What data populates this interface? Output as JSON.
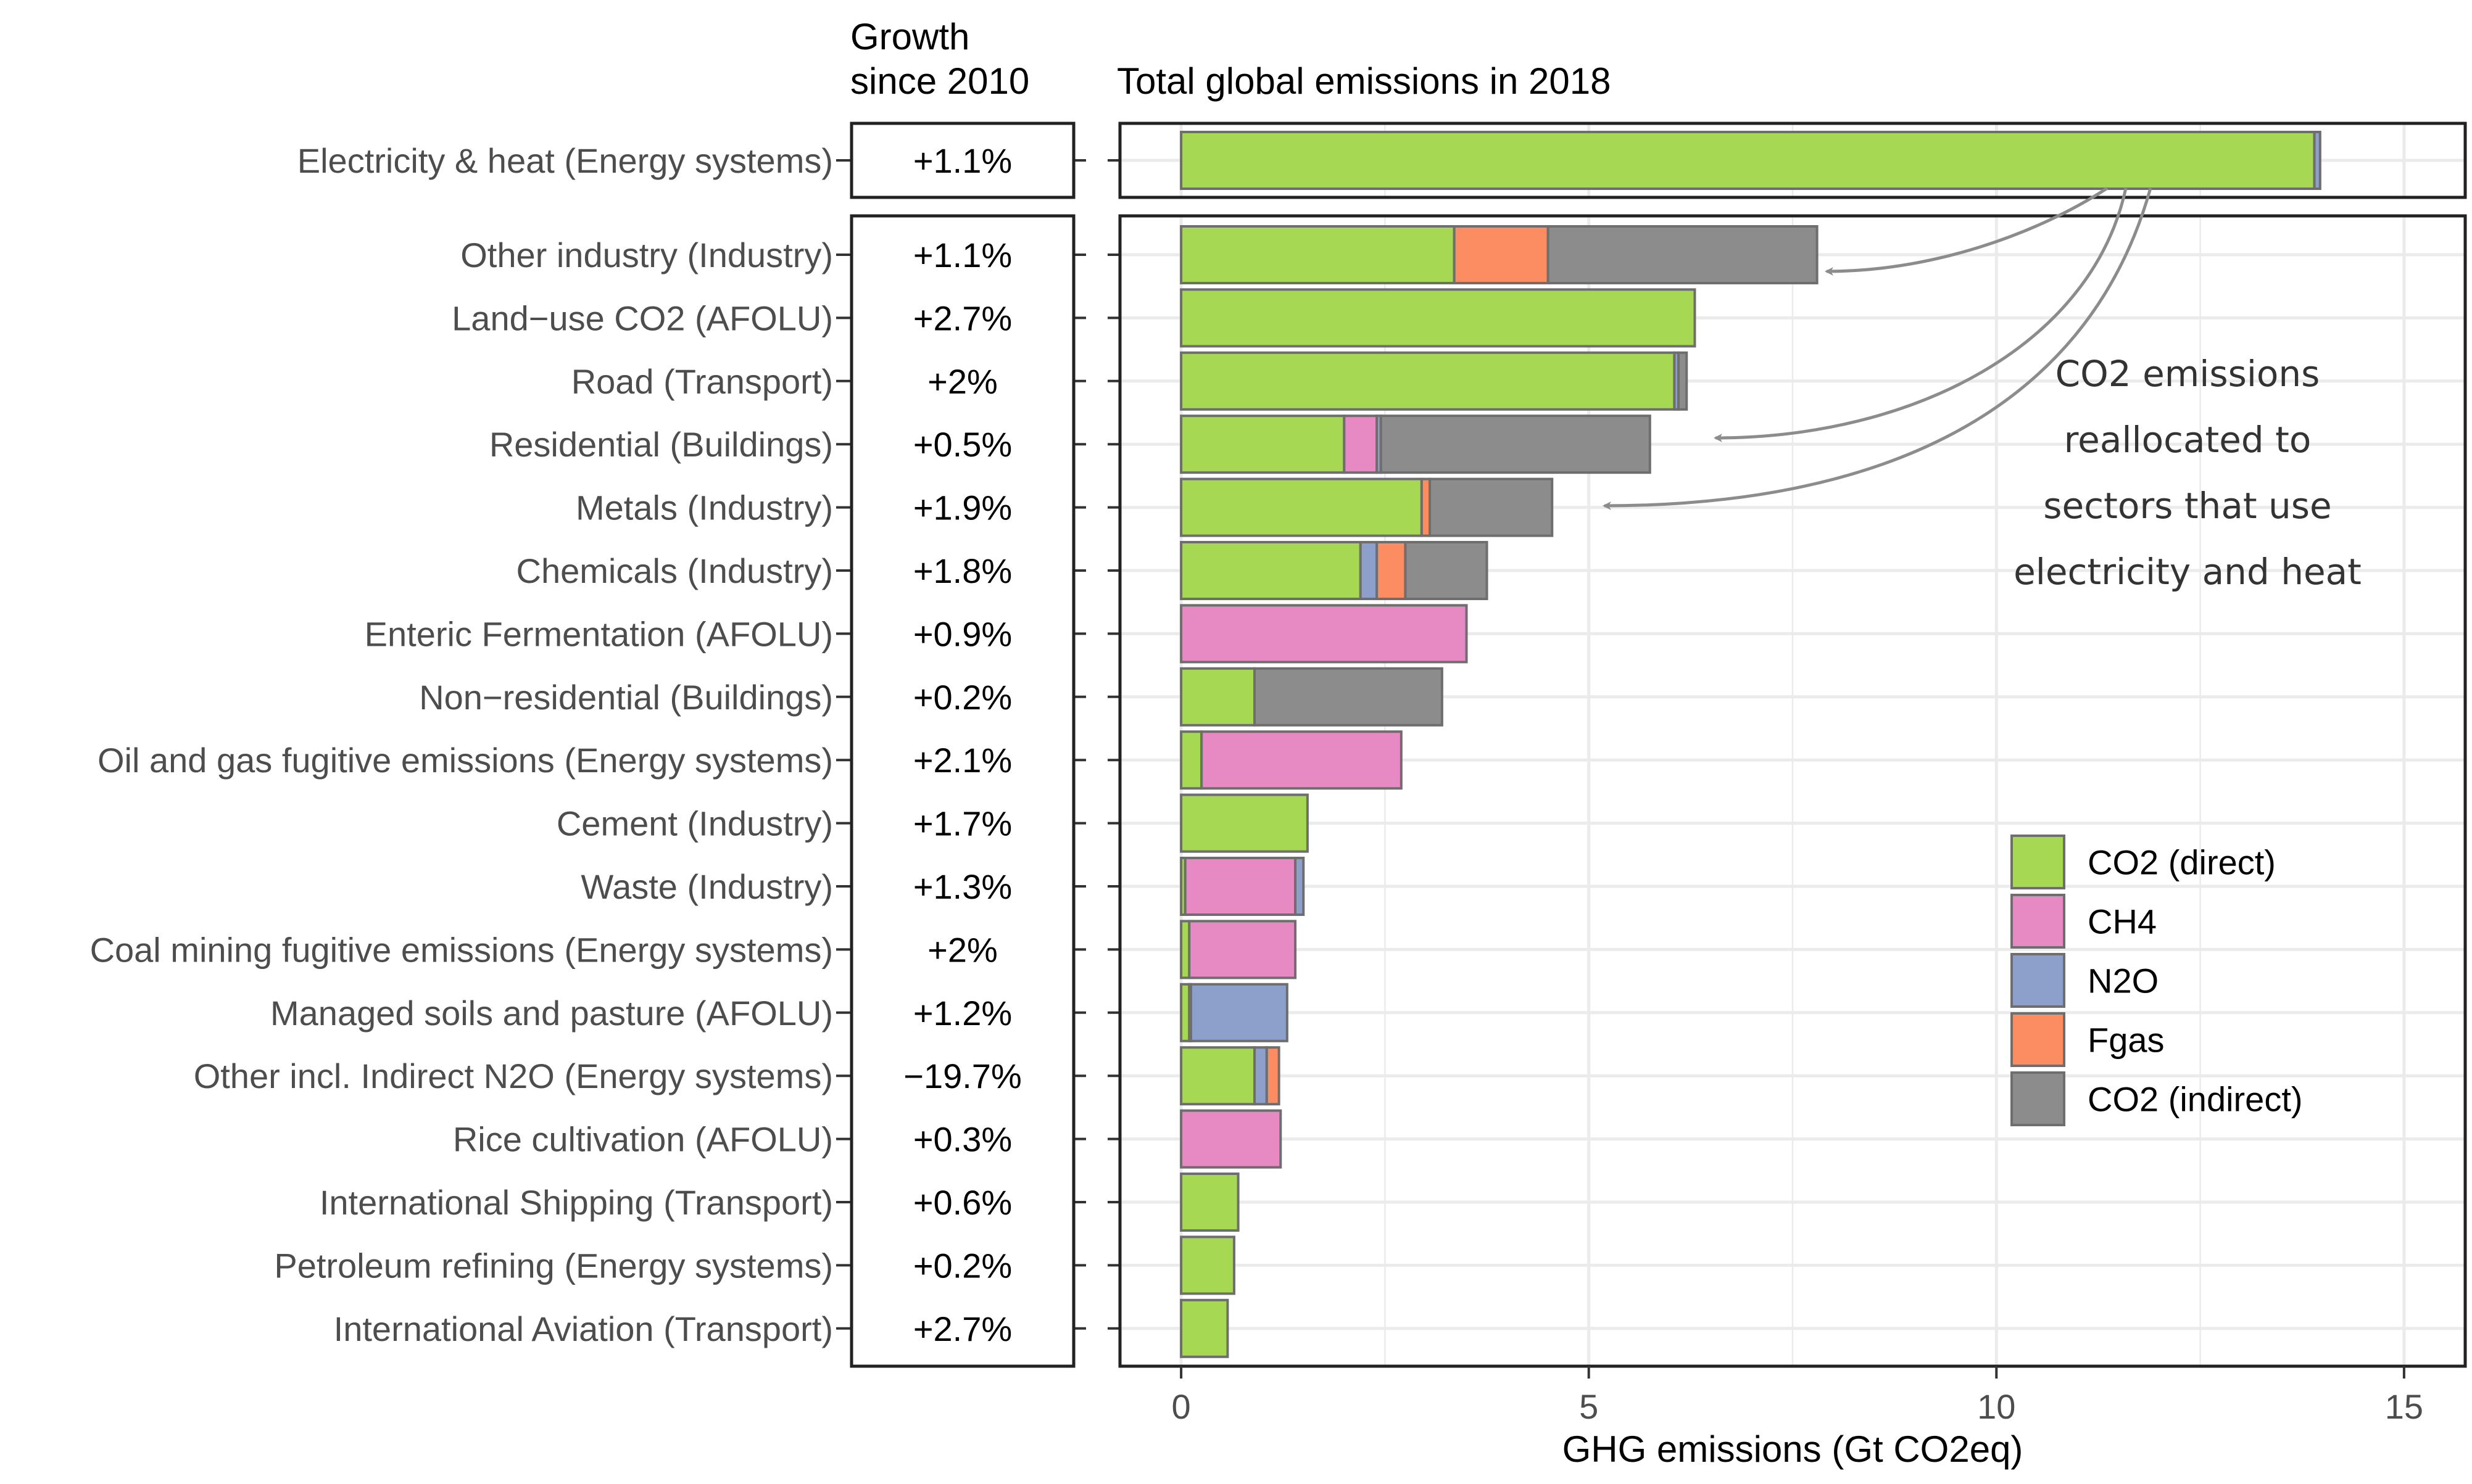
{
  "headers": {
    "growth_line1": "Growth",
    "growth_line2": "since 2010",
    "total": "Total global emissions in 2018"
  },
  "annotation": {
    "lines": [
      "CO2 emissions",
      "reallocated to",
      "sectors that use",
      "electricity and heat"
    ]
  },
  "colors": {
    "CO2 (direct)": "#a6d854",
    "CH4": "#e78ac3",
    "N2O": "#8da0cb",
    "Fgas": "#fc8d62",
    "CO2 (indirect)": "#8c8c8c",
    "bar_outline": "#6e6e6e",
    "grid": "#ebebeb",
    "arrow": "#8c8c8c"
  },
  "chart_data": {
    "type": "bar",
    "orientation": "horizontal",
    "stacked": true,
    "title": "",
    "xlabel": "GHG emissions (Gt CO2eq)",
    "ylabel": "",
    "xlim": [
      -0.75,
      15.75
    ],
    "xticks": [
      0,
      5,
      10,
      15
    ],
    "grid": true,
    "legend_position": "right",
    "gases": [
      "CO2 (direct)",
      "CH4",
      "N2O",
      "Fgas",
      "CO2 (indirect)"
    ],
    "top_panel": [
      {
        "sector": "Electricity & heat (Energy systems)",
        "growth": "+1.1%",
        "values": [
          13.9,
          0,
          0.07,
          0,
          0
        ]
      }
    ],
    "main_panel": [
      {
        "sector": "Other industry (Industry)",
        "growth": "+1.1%",
        "values": [
          3.35,
          0,
          0,
          1.15,
          3.3
        ]
      },
      {
        "sector": "Land−use CO2 (AFOLU)",
        "growth": "+2.7%",
        "values": [
          6.3,
          0,
          0,
          0,
          0
        ]
      },
      {
        "sector": "Road  (Transport)",
        "growth": "+2%",
        "values": [
          6.05,
          0,
          0.05,
          0,
          0.1
        ]
      },
      {
        "sector": "Residential (Buildings)",
        "growth": "+0.5%",
        "values": [
          2.0,
          0.4,
          0.05,
          0,
          3.3
        ]
      },
      {
        "sector": "Metals (Industry)",
        "growth": "+1.9%",
        "values": [
          2.95,
          0,
          0,
          0.1,
          1.5
        ]
      },
      {
        "sector": "Chemicals (Industry)",
        "growth": "+1.8%",
        "values": [
          2.2,
          0,
          0.2,
          0.35,
          1.0
        ]
      },
      {
        "sector": "Enteric Fermentation (AFOLU)",
        "growth": "+0.9%",
        "values": [
          0,
          3.5,
          0,
          0,
          0
        ]
      },
      {
        "sector": "Non−residential (Buildings)",
        "growth": "+0.2%",
        "values": [
          0.9,
          0,
          0,
          0,
          2.3
        ]
      },
      {
        "sector": "Oil and gas fugitive emissions (Energy systems)",
        "growth": "+2.1%",
        "values": [
          0.25,
          2.45,
          0,
          0,
          0
        ]
      },
      {
        "sector": "Cement (Industry)",
        "growth": "+1.7%",
        "values": [
          1.55,
          0,
          0,
          0,
          0
        ]
      },
      {
        "sector": "Waste (Industry)",
        "growth": "+1.3%",
        "values": [
          0.05,
          1.35,
          0.1,
          0,
          0
        ]
      },
      {
        "sector": "Coal mining fugitive emissions (Energy systems)",
        "growth": "+2%",
        "values": [
          0.1,
          1.3,
          0,
          0,
          0
        ]
      },
      {
        "sector": "Managed soils and pasture (AFOLU)",
        "growth": "+1.2%",
        "values": [
          0.1,
          0.02,
          1.18,
          0,
          0
        ]
      },
      {
        "sector": "Other incl. Indirect N2O (Energy systems)",
        "growth": "−19.7%",
        "values": [
          0.9,
          0,
          0.15,
          0.15,
          0
        ]
      },
      {
        "sector": "Rice cultivation (AFOLU)",
        "growth": "+0.3%",
        "values": [
          0,
          1.22,
          0,
          0,
          0
        ]
      },
      {
        "sector": "International Shipping (Transport)",
        "growth": "+0.6%",
        "values": [
          0.7,
          0,
          0,
          0,
          0
        ]
      },
      {
        "sector": "Petroleum refining (Energy systems)",
        "growth": "+0.2%",
        "values": [
          0.65,
          0,
          0,
          0,
          0
        ]
      },
      {
        "sector": "International Aviation (Transport)",
        "growth": "+2.7%",
        "values": [
          0.57,
          0,
          0,
          0,
          0
        ]
      }
    ]
  }
}
